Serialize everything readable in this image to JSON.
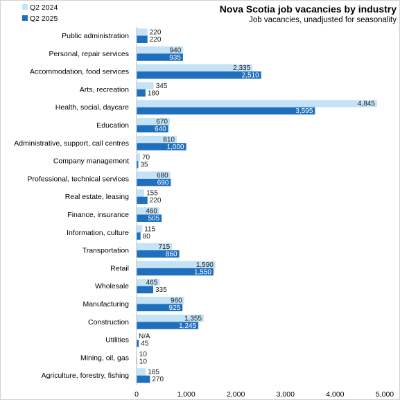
{
  "chart_data": {
    "type": "bar",
    "orientation": "horizontal",
    "title": "Nova Scotia job vacancies by industry",
    "subtitle": "Job vacancies,  unadjusted for seasonality",
    "xlabel": "",
    "ylabel": "",
    "xlim": [
      0,
      5000
    ],
    "ticks": [
      0,
      1000,
      2000,
      3000,
      4000,
      5000
    ],
    "tick_labels": [
      "0",
      "1,000",
      "2,000",
      "3,000",
      "4,000",
      "5,000"
    ],
    "legend_position": "top-left",
    "grid": false,
    "categories": [
      "Public administration",
      "Personal, repair services",
      "Accommodation, food services",
      "Arts, recreation",
      "Health, social, daycare",
      "Education",
      "Administrative, support, call centres",
      "Company management",
      "Professional, technical services",
      "Real estate, leasing",
      "Finance, insurance",
      "Information, culture",
      "Transportation",
      "Retail",
      "Wholesale",
      "Manufacturing",
      "Construction",
      "Utilities",
      "Mining, oil, gas",
      "Agriculture, forestry, fishing"
    ],
    "series": [
      {
        "name": "Q2 2024",
        "color": "#c5e3f7",
        "values": [
          220,
          940,
          2335,
          345,
          4845,
          670,
          810,
          70,
          680,
          155,
          460,
          115,
          715,
          1590,
          465,
          960,
          1355,
          null,
          10,
          185
        ],
        "labels": [
          "220",
          "940",
          "2,335",
          "345",
          "4,845",
          "670",
          "810",
          "70",
          "680",
          "155",
          "460",
          "115",
          "715",
          "1,590",
          "465",
          "960",
          "1,355",
          "N/A",
          "10",
          "185"
        ]
      },
      {
        "name": "Q2 2025",
        "color": "#1f6fbf",
        "values": [
          220,
          935,
          2510,
          180,
          3595,
          640,
          1000,
          35,
          690,
          220,
          505,
          80,
          860,
          1550,
          335,
          925,
          1245,
          45,
          10,
          270
        ],
        "labels": [
          "220",
          "935",
          "2,510",
          "180",
          "3,595",
          "640",
          "1,000",
          "35",
          "690",
          "220",
          "505",
          "80",
          "860",
          "1,550",
          "335",
          "925",
          "1,245",
          "45",
          "10",
          "270"
        ]
      }
    ]
  }
}
